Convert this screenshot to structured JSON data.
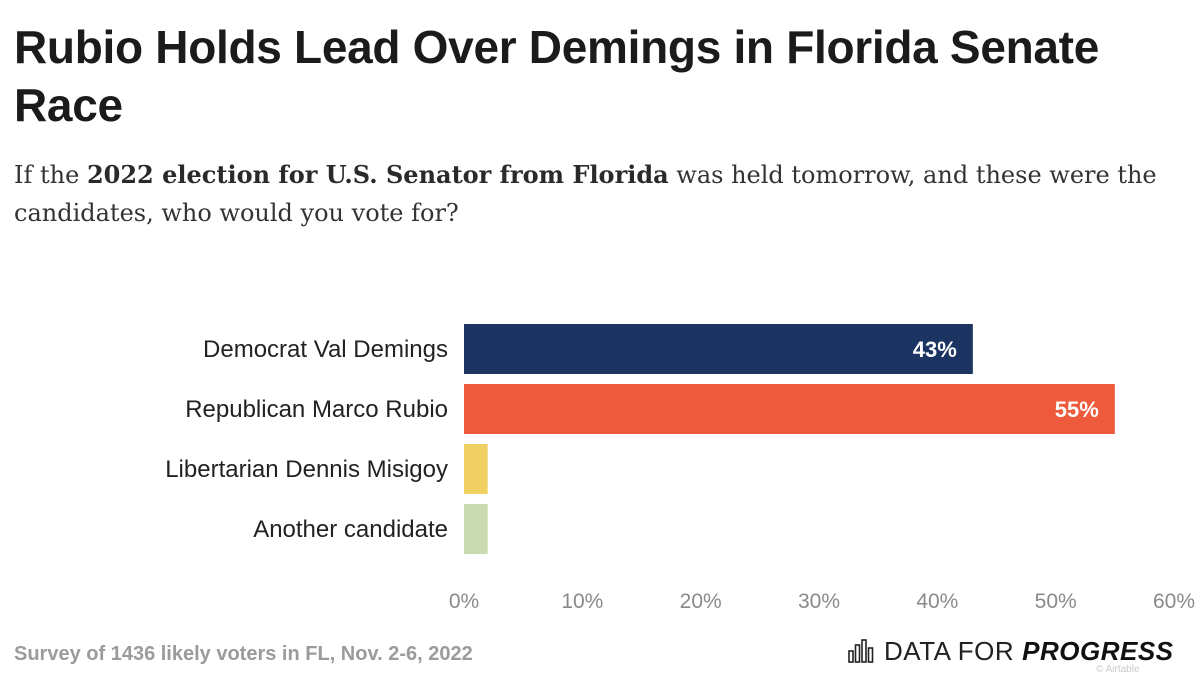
{
  "title": "Rubio Holds Lead Over Demings in Florida Senate Race",
  "subtitle": {
    "prefix": "If the ",
    "bold": "2022 election for U.S. Senator from Florida",
    "suffix": " was held tomorrow, and these were the candidates, who would you vote for?"
  },
  "chart_data": {
    "type": "bar",
    "orientation": "horizontal",
    "categories": [
      "Democrat Val Demings",
      "Republican Marco Rubio",
      "Libertarian Dennis Misigoy",
      "Another candidate"
    ],
    "values": [
      43,
      55,
      2,
      2
    ],
    "value_labels": [
      "43%",
      "55%",
      "",
      ""
    ],
    "colors": [
      "#1c3461",
      "#ee5a3c",
      "#f0d063",
      "#c9dab1"
    ],
    "xlim": [
      0,
      60
    ],
    "xticks": [
      0,
      10,
      20,
      30,
      40,
      50,
      60
    ],
    "xtick_labels": [
      "0%",
      "10%",
      "20%",
      "30%",
      "40%",
      "50%",
      "60%"
    ],
    "grid": false,
    "xlabel": "",
    "ylabel": ""
  },
  "footer": {
    "survey_note": "Survey of 1436 likely voters in FL, Nov. 2-6, 2022",
    "brand_part1": "DATA FOR",
    "brand_part2": "PROGRESS",
    "attribution": "© Airtable"
  }
}
